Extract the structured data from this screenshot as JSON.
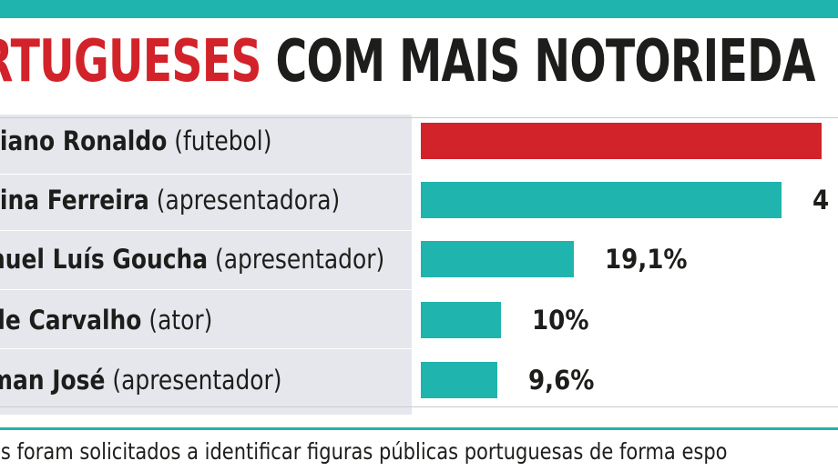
{
  "header": {
    "title_highlight": "RTUGUESES",
    "title_rest": "COM MAIS NOTORIEDA"
  },
  "chart_data": {
    "type": "bar",
    "orientation": "horizontal",
    "title": "RTUGUESES COM MAIS NOTORIEDA",
    "categories": [
      "tiano Ronaldo (futebol)",
      "tina Ferreira (apresentadora)",
      "nuel Luís Goucha (apresentador)",
      "de Carvalho (ator)",
      "man José (apresentador)"
    ],
    "rows": [
      {
        "name": "tiano Ronaldo",
        "role": "(futebol)",
        "value": 50,
        "label": "",
        "color": "#d2232a"
      },
      {
        "name": "tina Ferreira",
        "role": "(apresentadora)",
        "value": 45,
        "label": "4",
        "color": "#1fb4ad"
      },
      {
        "name": "nuel Luís Goucha",
        "role": "(apresentador)",
        "value": 19.1,
        "label": "19,1%",
        "color": "#1fb4ad"
      },
      {
        "name": "de Carvalho",
        "role": "(ator)",
        "value": 10,
        "label": "10%",
        "color": "#1fb4ad"
      },
      {
        "name": "man José",
        "role": "(apresentador)",
        "value": 9.6,
        "label": "9,6%",
        "color": "#1fb4ad"
      }
    ],
    "value_unit": "%",
    "xlim": [
      0,
      50
    ],
    "grid": false,
    "legend": "none"
  },
  "footnote": "os foram solicitados a identificar figuras públicas portuguesas de forma espo",
  "colors": {
    "accent": "#1fb4ad",
    "highlight": "#d2232a",
    "panel": "#e6e7ed",
    "text": "#1d1d1b"
  }
}
